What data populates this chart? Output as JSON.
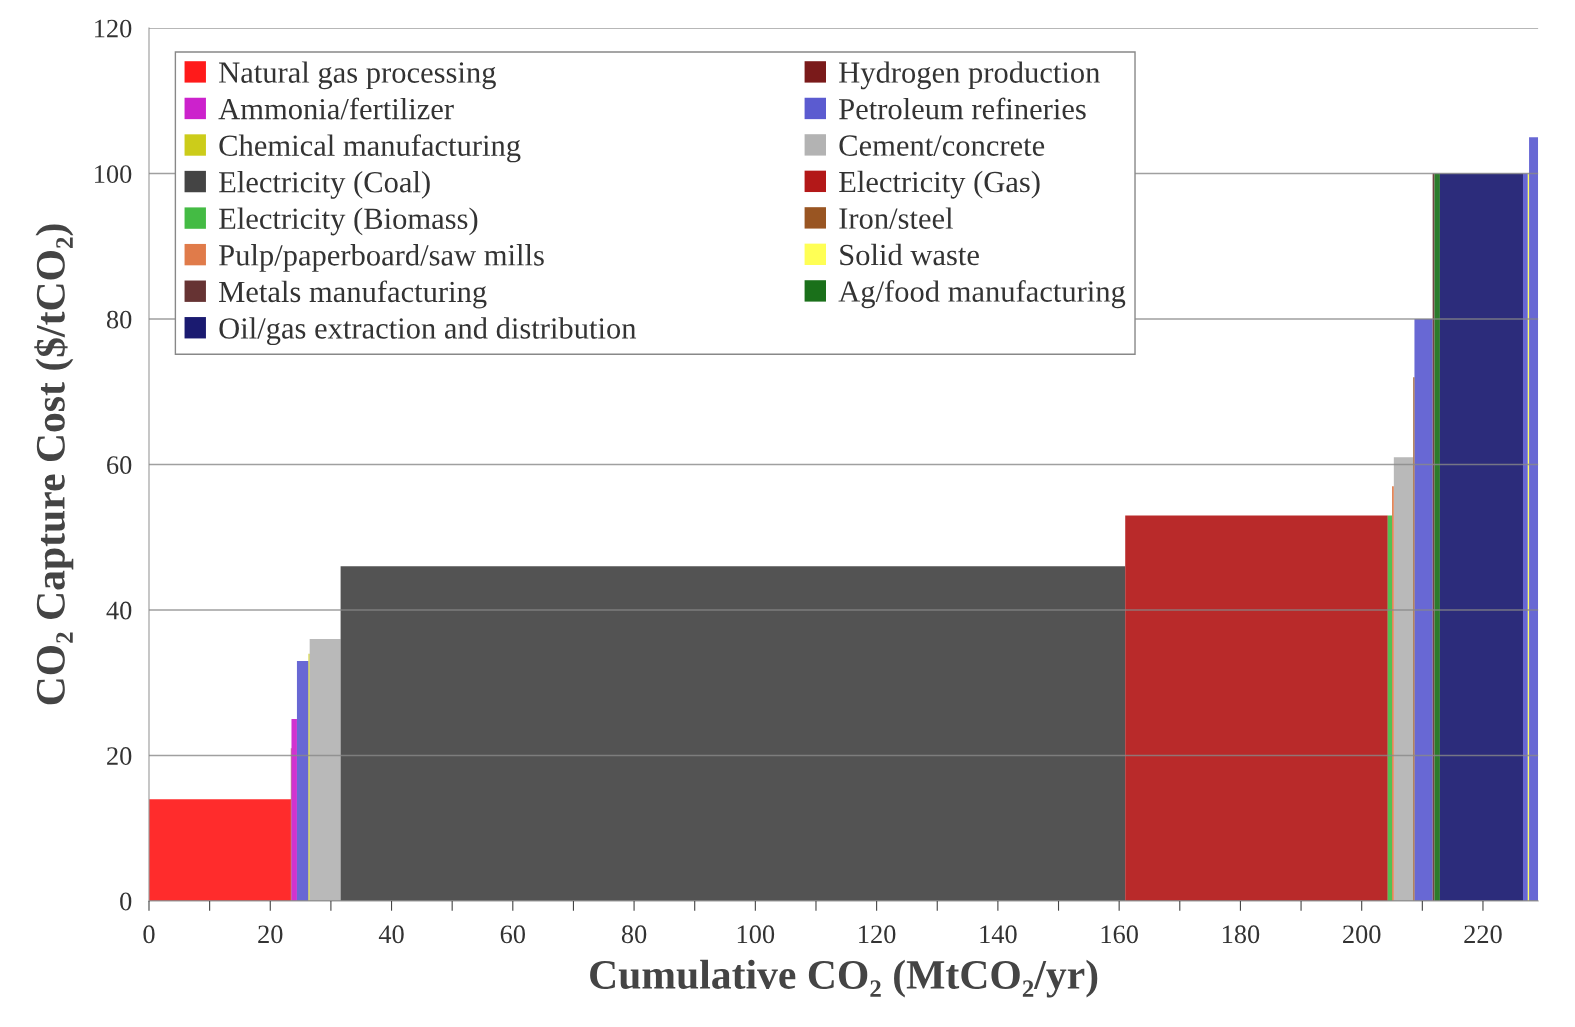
{
  "chart_data": {
    "type": "area",
    "xlabel": "Cumulative CO₂ (MtCO₂/yr)",
    "ylabel": "CO₂ Capture Cost ($/tCO₂)",
    "xlim": [
      0,
      229.1
    ],
    "ylim": [
      0,
      120
    ],
    "xticks": [
      0,
      {
        "value": 10,
        "label": null
      },
      20,
      {
        "value": 30,
        "label": null
      },
      40,
      {
        "value": 50,
        "label": null
      },
      60,
      {
        "value": 70,
        "label": null
      },
      80,
      {
        "value": 90,
        "label": null
      },
      100,
      {
        "value": 110,
        "label": null
      },
      120,
      {
        "value": 130,
        "label": null
      },
      140,
      {
        "value": 150,
        "label": null
      },
      160,
      {
        "value": 170,
        "label": null
      },
      180,
      {
        "value": 190,
        "label": null
      },
      200,
      {
        "value": 210,
        "label": null
      },
      220
    ],
    "yticks": [
      0,
      20,
      40,
      60,
      80,
      100,
      120
    ],
    "grid": "y",
    "legend": "top left",
    "series": [
      {
        "name": "Natural gas processing",
        "color": "#ff1a1a",
        "x": [
          0,
          23.4
        ],
        "values": [
          14,
          14
        ]
      },
      {
        "name": "Hydrogen production",
        "color": "#7a1a1a",
        "x": [
          23.4,
          23.5
        ],
        "values": [
          21,
          21
        ]
      },
      {
        "name": "Ammonia/fertilizer",
        "color": "#cc22cc",
        "x": [
          23.5,
          24.4
        ],
        "values": [
          25,
          25
        ]
      },
      {
        "name": "Petroleum refineries",
        "color": "#5b5bd0",
        "x": [
          24.4,
          26.3
        ],
        "values": [
          33,
          33
        ]
      },
      {
        "color": "#5b5bd0",
        "x": [
          208.7,
          211.7
        ],
        "values": [
          80,
          80
        ]
      },
      {
        "color": "#5b5bd0",
        "x": [
          226.6,
          227.4
        ],
        "values": [
          100,
          100
        ]
      },
      {
        "color": "#5b5bd0",
        "x": [
          227.6,
          229.1
        ],
        "values": [
          105,
          105
        ]
      },
      {
        "name": "Chemical manufacturing",
        "color": "#cccc1a",
        "x": [
          26.3,
          26.5
        ],
        "values": [
          34,
          34
        ]
      },
      {
        "name": "Cement/concrete",
        "color": "#b3b3b3",
        "x": [
          26.5,
          31.6
        ],
        "values": [
          36,
          36
        ]
      },
      {
        "color": "#b3b3b3",
        "x": [
          205.3,
          208.5
        ],
        "values": [
          61,
          61
        ]
      },
      {
        "name": "Electricity (Coal)",
        "color": "#444444",
        "x": [
          31.6,
          161
        ],
        "values": [
          46,
          46
        ]
      },
      {
        "name": "Electricity (Gas)",
        "color": "#b31818",
        "x": [
          161,
          204.3
        ],
        "values": [
          53,
          53
        ]
      },
      {
        "name": "Electricity (Biomass)",
        "color": "#44bb44",
        "x": [
          204.3,
          205.0
        ],
        "values": [
          53,
          53
        ]
      },
      {
        "name": "Iron/steel",
        "color": "#995522",
        "x": [
          208.5,
          208.7
        ],
        "values": [
          72,
          72
        ]
      },
      {
        "name": "Pulp/paperboard/saw mills",
        "color": "#e07b4a",
        "x": [
          205.0,
          205.3
        ],
        "values": [
          57,
          57
        ]
      },
      {
        "name": "Solid waste",
        "color": "#ffff55",
        "x": [
          227.4,
          227.6
        ],
        "values": [
          100,
          100
        ]
      },
      {
        "name": "Metals manufacturing",
        "color": "#663333",
        "x": [
          211.7,
          212.0
        ],
        "values": [
          100,
          100
        ]
      },
      {
        "name": "Ag/food manufacturing",
        "color": "#1a701a",
        "x": [
          212.0,
          212.9
        ],
        "values": [
          100,
          100
        ]
      },
      {
        "name": "Oil/gas extraction and distribution",
        "color": "#1a1a70",
        "x": [
          212.9,
          226.6
        ],
        "values": [
          100,
          100
        ]
      }
    ]
  }
}
